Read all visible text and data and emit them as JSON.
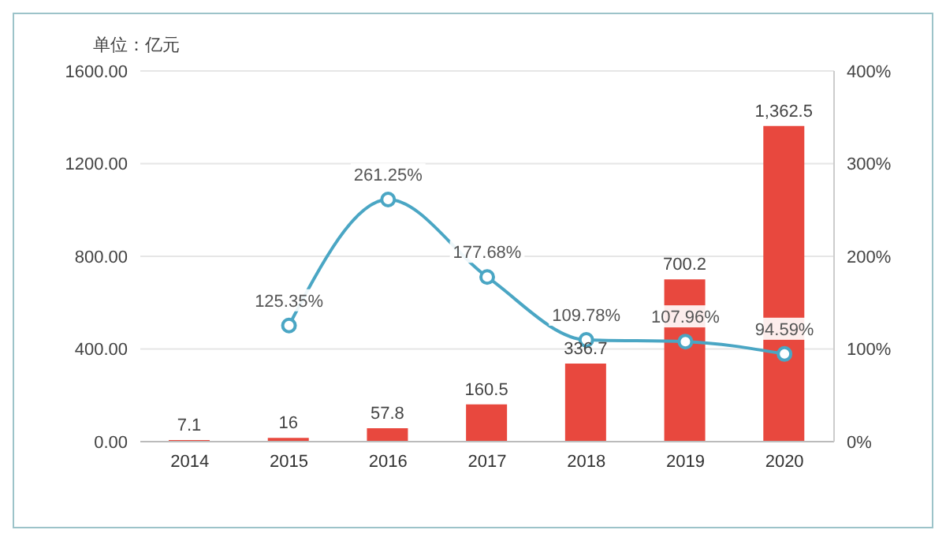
{
  "chart_data": {
    "type": "bar",
    "ylabel": "单位：亿元",
    "categories": [
      "2014",
      "2015",
      "2016",
      "2017",
      "2018",
      "2019",
      "2020"
    ],
    "series": [
      {
        "color": "#e8483e",
        "values": [
          7.1,
          16,
          57.8,
          160.5,
          336.7,
          700.2,
          1362.5
        ],
        "value_labels": [
          "7.1",
          "16",
          "57.8",
          "160.5",
          "336.7",
          "700.2",
          "1,362.5"
        ]
      },
      {
        "type": "line",
        "axis": "y2",
        "color": "#4aa6c4",
        "values": [
          null,
          125.35,
          261.25,
          177.68,
          109.78,
          107.96,
          94.59
        ],
        "value_labels": [
          null,
          "125.35%",
          "261.25%",
          "177.68%",
          "109.78%",
          "107.96%",
          "94.59%"
        ]
      }
    ],
    "ylim": [
      0,
      1600
    ],
    "yticks": [
      {
        "value": 0,
        "label": "0.00"
      },
      {
        "value": 400,
        "label": "400.00"
      },
      {
        "value": 800,
        "label": "800.00"
      },
      {
        "value": 1200,
        "label": "1200.00"
      },
      {
        "value": 1600,
        "label": "1600.00"
      }
    ],
    "y2lim": [
      0,
      400
    ],
    "y2ticks": [
      {
        "value": 0,
        "label": "0%"
      },
      {
        "value": 100,
        "label": "100%"
      },
      {
        "value": 200,
        "label": "200%"
      },
      {
        "value": 300,
        "label": "300%"
      },
      {
        "value": 400,
        "label": "400%"
      }
    ],
    "grid": "y",
    "marker": "circle"
  }
}
